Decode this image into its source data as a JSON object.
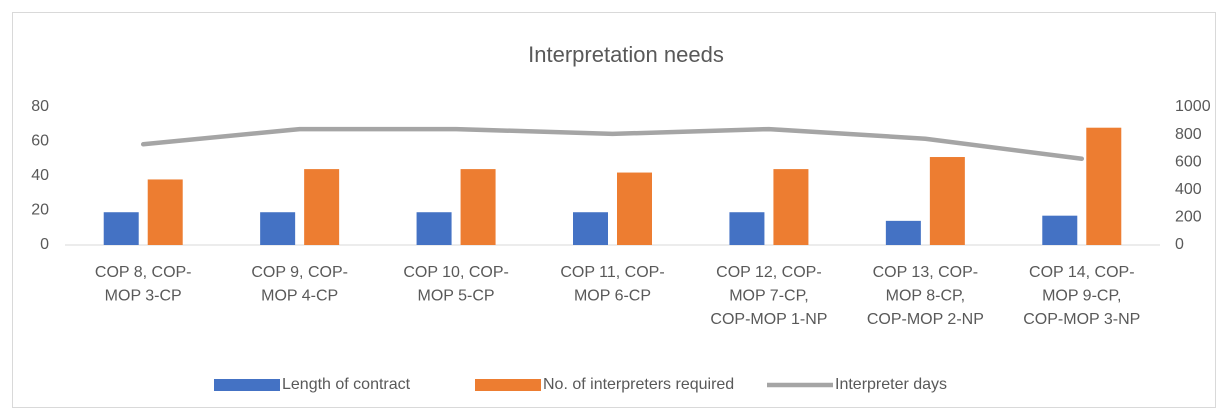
{
  "chart_data": {
    "type": "bar",
    "title": "Interpretation needs",
    "categories": [
      "COP 8, COP-\nMOP 3-CP",
      "COP 9, COP-\nMOP 4-CP",
      "COP 10, COP-\nMOP 5-CP",
      "COP 11, COP-\nMOP 6-CP",
      "COP 12, COP-\nMOP 7-CP,\nCOP-MOP 1-NP",
      "COP 13, COP-\nMOP 8-CP,\nCOP-MOP 2-NP",
      "COP 14, COP-\nMOP 9-CP,\nCOP-MOP 3-NP"
    ],
    "series": [
      {
        "name": "Length of contract",
        "type": "bar",
        "color": "#4472c4",
        "values": [
          19,
          19,
          19,
          19,
          19,
          14,
          17
        ]
      },
      {
        "name": "No. of interpreters required",
        "type": "bar",
        "color": "#ed7d31",
        "values": [
          38,
          44,
          44,
          42,
          44,
          51,
          68
        ]
      },
      {
        "name": "Interpreter days",
        "type": "line",
        "axis": "y2",
        "color": "#a5a5a5",
        "values": [
          730,
          840,
          840,
          805,
          840,
          770,
          625
        ]
      }
    ],
    "ylim": [
      0,
      80
    ],
    "yticks": [
      0,
      20,
      40,
      60,
      80
    ],
    "y2lim": [
      0,
      1000
    ],
    "y2ticks": [
      0,
      200,
      400,
      600,
      800,
      1000
    ],
    "grid": false,
    "legend": "bottom"
  }
}
